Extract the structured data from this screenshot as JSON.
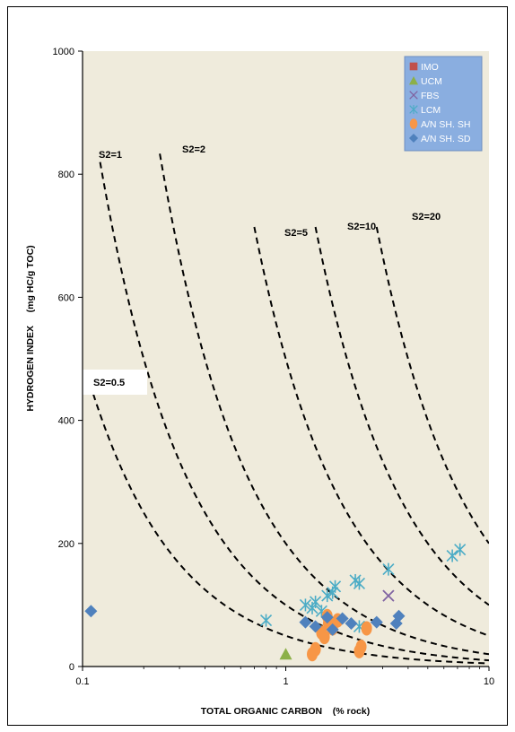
{
  "chart_data": {
    "type": "scatter",
    "title": "",
    "xlabel": "TOTAL ORGANIC CARBON    (% rock)",
    "ylabel": "HYDROGEN INDEX     (mg HC/g TOC)",
    "xscale": "log",
    "xlim": [
      0.1,
      10
    ],
    "ylim": [
      0,
      1000
    ],
    "x_ticks": [
      "0.1",
      "1",
      "10"
    ],
    "y_ticks": [
      "0",
      "200",
      "400",
      "600",
      "800",
      "1000"
    ],
    "grid": false,
    "background": "#efebdc",
    "legend_placement": "top-right",
    "legend_background": "#8aaee0",
    "series": [
      {
        "name": "IMO",
        "marker": "square",
        "color": "#c0504d",
        "points": []
      },
      {
        "name": "UCM",
        "marker": "triangle",
        "color": "#8cb048",
        "points": [
          [
            1.0,
            20
          ]
        ]
      },
      {
        "name": "FBS",
        "marker": "x",
        "color": "#8064a2",
        "points": [
          [
            3.2,
            115
          ]
        ]
      },
      {
        "name": "LCM",
        "marker": "asterisk",
        "color": "#4bacc6",
        "points": [
          [
            0.8,
            75
          ],
          [
            1.25,
            100
          ],
          [
            1.35,
            95
          ],
          [
            1.5,
            90
          ],
          [
            1.6,
            115
          ],
          [
            1.7,
            120
          ],
          [
            1.75,
            130
          ],
          [
            2.2,
            140
          ],
          [
            2.3,
            135
          ],
          [
            3.2,
            158
          ],
          [
            6.6,
            180
          ],
          [
            7.2,
            190
          ],
          [
            2.3,
            65
          ],
          [
            1.4,
            105
          ]
        ]
      },
      {
        "name": "A/N SH. SH",
        "marker": "circle",
        "color": "#f79646",
        "points": [
          [
            1.35,
            20
          ],
          [
            1.4,
            28
          ],
          [
            1.5,
            55
          ],
          [
            1.55,
            48
          ],
          [
            1.6,
            82
          ],
          [
            1.62,
            70
          ],
          [
            1.7,
            62
          ],
          [
            1.8,
            75
          ],
          [
            2.3,
            25
          ],
          [
            2.35,
            32
          ],
          [
            2.5,
            62
          ]
        ]
      },
      {
        "name": "A/N SH. SD",
        "marker": "diamond",
        "color": "#4f81bd",
        "points": [
          [
            0.11,
            90
          ],
          [
            1.25,
            72
          ],
          [
            1.4,
            65
          ],
          [
            1.6,
            80
          ],
          [
            1.7,
            60
          ],
          [
            1.9,
            78
          ],
          [
            2.1,
            70
          ],
          [
            2.8,
            72
          ],
          [
            3.5,
            70
          ],
          [
            3.6,
            82
          ]
        ]
      }
    ],
    "curves": [
      {
        "label": "S2=0.5",
        "s2": 0.5,
        "x_range": [
          0.105,
          10
        ]
      },
      {
        "label": "S2=1",
        "s2": 1,
        "x_range": [
          0.122,
          10
        ]
      },
      {
        "label": "S2=2",
        "s2": 2,
        "x_range": [
          0.24,
          10
        ]
      },
      {
        "label": "S2=5",
        "s2": 5,
        "x_range": [
          0.7,
          10
        ]
      },
      {
        "label": "S2=10",
        "s2": 10,
        "x_range": [
          1.4,
          10
        ]
      },
      {
        "label": "S2=20",
        "s2": 20,
        "x_range": [
          2.8,
          10
        ]
      }
    ]
  }
}
